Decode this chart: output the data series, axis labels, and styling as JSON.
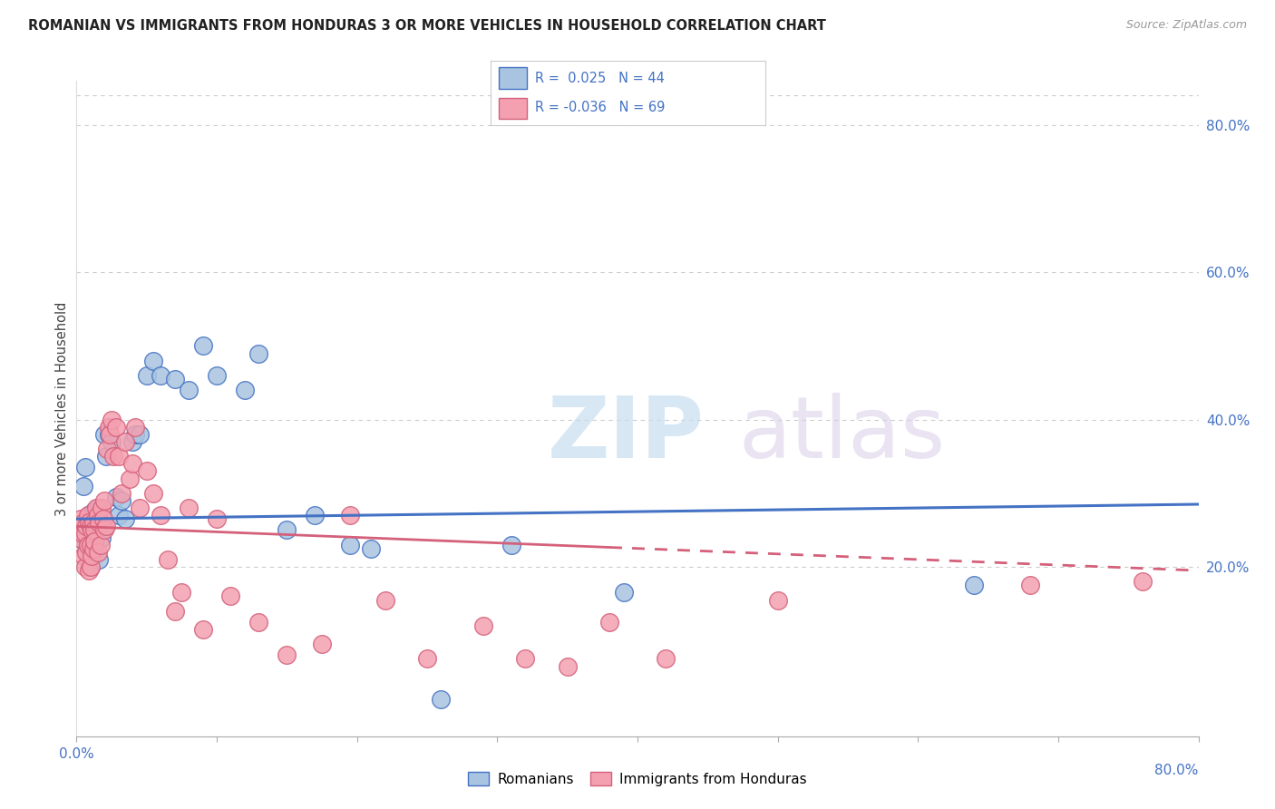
{
  "title": "ROMANIAN VS IMMIGRANTS FROM HONDURAS 3 OR MORE VEHICLES IN HOUSEHOLD CORRELATION CHART",
  "source": "Source: ZipAtlas.com",
  "ylabel": "3 or more Vehicles in Household",
  "right_yticks": [
    "80.0%",
    "60.0%",
    "40.0%",
    "20.0%"
  ],
  "right_ytick_vals": [
    0.8,
    0.6,
    0.4,
    0.2
  ],
  "color_romanian": "#a8c4e0",
  "color_honduras": "#f4a0b0",
  "line_color_romanian": "#4472c4",
  "line_color_honduras": "#d4607a",
  "xlim": [
    0.0,
    0.8
  ],
  "ylim": [
    -0.03,
    0.86
  ],
  "ro_line_x0": 0.0,
  "ro_line_x1": 0.8,
  "ro_line_y0": 0.265,
  "ro_line_y1": 0.285,
  "ho_line_x0": 0.0,
  "ho_line_x1": 0.8,
  "ho_line_y0": 0.255,
  "ho_line_y1": 0.195,
  "scatter_romanian_x": [
    0.003,
    0.005,
    0.006,
    0.007,
    0.008,
    0.009,
    0.009,
    0.01,
    0.01,
    0.012,
    0.013,
    0.014,
    0.015,
    0.015,
    0.016,
    0.018,
    0.02,
    0.021,
    0.023,
    0.025,
    0.028,
    0.03,
    0.032,
    0.035,
    0.04,
    0.042,
    0.045,
    0.05,
    0.055,
    0.06,
    0.07,
    0.08,
    0.09,
    0.1,
    0.12,
    0.13,
    0.15,
    0.17,
    0.195,
    0.21,
    0.26,
    0.31,
    0.39,
    0.64
  ],
  "scatter_romanian_y": [
    0.245,
    0.31,
    0.335,
    0.23,
    0.25,
    0.27,
    0.21,
    0.245,
    0.2,
    0.275,
    0.265,
    0.235,
    0.25,
    0.28,
    0.21,
    0.24,
    0.38,
    0.35,
    0.38,
    0.37,
    0.295,
    0.27,
    0.29,
    0.265,
    0.37,
    0.38,
    0.38,
    0.46,
    0.48,
    0.46,
    0.455,
    0.44,
    0.5,
    0.46,
    0.44,
    0.49,
    0.25,
    0.27,
    0.23,
    0.225,
    0.02,
    0.23,
    0.165,
    0.175
  ],
  "scatter_honduras_x": [
    0.002,
    0.003,
    0.004,
    0.005,
    0.005,
    0.006,
    0.006,
    0.007,
    0.007,
    0.008,
    0.008,
    0.009,
    0.009,
    0.01,
    0.01,
    0.01,
    0.011,
    0.011,
    0.012,
    0.012,
    0.013,
    0.013,
    0.014,
    0.015,
    0.015,
    0.016,
    0.017,
    0.018,
    0.019,
    0.02,
    0.02,
    0.021,
    0.022,
    0.023,
    0.024,
    0.025,
    0.026,
    0.028,
    0.03,
    0.032,
    0.035,
    0.038,
    0.04,
    0.042,
    0.045,
    0.05,
    0.055,
    0.06,
    0.065,
    0.07,
    0.075,
    0.08,
    0.09,
    0.1,
    0.11,
    0.13,
    0.15,
    0.175,
    0.195,
    0.22,
    0.25,
    0.29,
    0.32,
    0.35,
    0.38,
    0.42,
    0.5,
    0.68,
    0.76
  ],
  "scatter_honduras_y": [
    0.24,
    0.265,
    0.245,
    0.26,
    0.215,
    0.245,
    0.2,
    0.255,
    0.22,
    0.27,
    0.23,
    0.26,
    0.195,
    0.255,
    0.23,
    0.2,
    0.25,
    0.215,
    0.26,
    0.225,
    0.25,
    0.235,
    0.28,
    0.27,
    0.22,
    0.26,
    0.23,
    0.28,
    0.265,
    0.29,
    0.25,
    0.255,
    0.36,
    0.39,
    0.38,
    0.4,
    0.35,
    0.39,
    0.35,
    0.3,
    0.37,
    0.32,
    0.34,
    0.39,
    0.28,
    0.33,
    0.3,
    0.27,
    0.21,
    0.14,
    0.165,
    0.28,
    0.115,
    0.265,
    0.16,
    0.125,
    0.08,
    0.095,
    0.27,
    0.155,
    0.075,
    0.12,
    0.075,
    0.065,
    0.125,
    0.075,
    0.155,
    0.175,
    0.18
  ]
}
